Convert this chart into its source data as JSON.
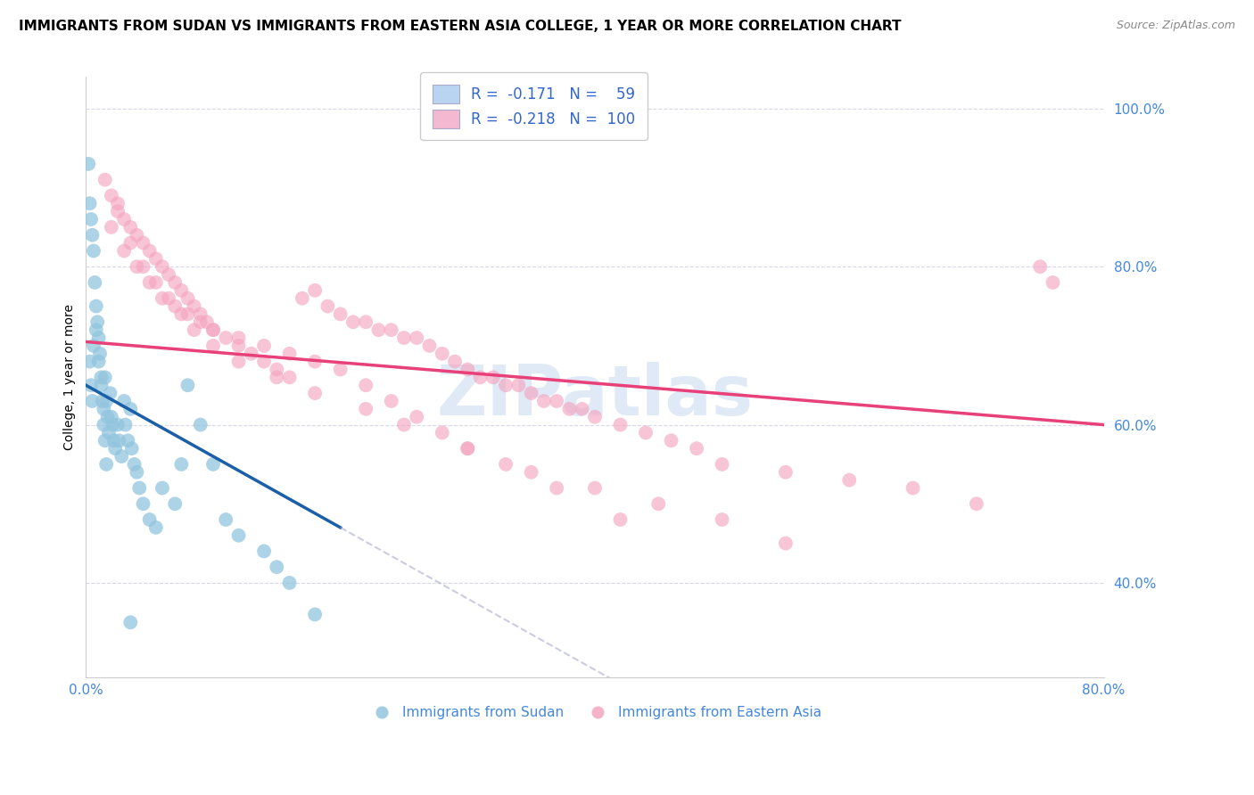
{
  "title": "IMMIGRANTS FROM SUDAN VS IMMIGRANTS FROM EASTERN ASIA COLLEGE, 1 YEAR OR MORE CORRELATION CHART",
  "source": "Source: ZipAtlas.com",
  "ylabel": "College, 1 year or more",
  "sudan_color": "#92c5de",
  "eastern_color": "#f4a6c0",
  "sudan_line_color": "#1a5fa8",
  "eastern_line_color": "#e8417a",
  "sudan_R": -0.171,
  "sudan_N": 59,
  "eastern_R": -0.218,
  "eastern_N": 100,
  "xlim": [
    0,
    80
  ],
  "ylim": [
    28,
    104
  ],
  "yticks": [
    40,
    60,
    80,
    100
  ],
  "ytick_labels": [
    "40.0%",
    "60.0%",
    "80.0%",
    "100.0%"
  ],
  "xtick_labels_left": "0.0%",
  "xtick_labels_right": "80.0%",
  "watermark": "ZIPatlas",
  "background_color": "#ffffff",
  "grid_color": "#d8d8e8",
  "title_fontsize": 11,
  "axis_label_fontsize": 10,
  "tick_fontsize": 11,
  "legend_fontsize": 12,
  "sudan_scatter_x": [
    0.3,
    0.4,
    0.5,
    0.6,
    0.8,
    1.0,
    1.2,
    1.4,
    1.5,
    1.6,
    1.7,
    1.8,
    1.9,
    2.0,
    2.1,
    2.2,
    2.3,
    2.5,
    2.6,
    2.8,
    3.0,
    3.1,
    3.3,
    3.5,
    3.6,
    3.8,
    4.0,
    4.2,
    4.5,
    5.0,
    5.5,
    6.0,
    7.0,
    7.5,
    8.0,
    9.0,
    10.0,
    11.0,
    12.0,
    14.0,
    15.0,
    16.0,
    18.0,
    0.2,
    0.3,
    0.4,
    0.5,
    0.6,
    0.7,
    0.8,
    0.9,
    1.0,
    1.1,
    1.2,
    1.3,
    1.4,
    1.5,
    1.6,
    3.5
  ],
  "sudan_scatter_y": [
    68,
    65,
    63,
    70,
    72,
    68,
    65,
    62,
    66,
    63,
    61,
    59,
    64,
    61,
    60,
    58,
    57,
    60,
    58,
    56,
    63,
    60,
    58,
    62,
    57,
    55,
    54,
    52,
    50,
    48,
    47,
    52,
    50,
    55,
    65,
    60,
    55,
    48,
    46,
    44,
    42,
    40,
    36,
    93,
    88,
    86,
    84,
    82,
    78,
    75,
    73,
    71,
    69,
    66,
    63,
    60,
    58,
    55,
    35
  ],
  "eastern_scatter_x": [
    1.5,
    2.0,
    2.5,
    3.0,
    3.5,
    4.0,
    4.5,
    5.0,
    5.5,
    6.0,
    6.5,
    7.0,
    7.5,
    8.0,
    8.5,
    9.0,
    9.5,
    10.0,
    11.0,
    12.0,
    13.0,
    14.0,
    15.0,
    16.0,
    17.0,
    18.0,
    19.0,
    20.0,
    21.0,
    22.0,
    23.0,
    24.0,
    25.0,
    26.0,
    27.0,
    28.0,
    29.0,
    30.0,
    31.0,
    32.0,
    33.0,
    34.0,
    35.0,
    36.0,
    37.0,
    38.0,
    39.0,
    40.0,
    42.0,
    44.0,
    46.0,
    48.0,
    50.0,
    55.0,
    60.0,
    65.0,
    70.0,
    75.0,
    76.0,
    2.0,
    3.0,
    4.0,
    5.0,
    6.0,
    7.0,
    8.0,
    9.0,
    10.0,
    12.0,
    14.0,
    16.0,
    18.0,
    20.0,
    22.0,
    24.0,
    26.0,
    28.0,
    30.0,
    2.5,
    3.5,
    4.5,
    5.5,
    6.5,
    7.5,
    8.5,
    10.0,
    12.0,
    15.0,
    18.0,
    22.0,
    25.0,
    30.0,
    35.0,
    40.0,
    45.0,
    50.0,
    55.0,
    33.0,
    37.0,
    42.0
  ],
  "eastern_scatter_y": [
    91,
    89,
    88,
    86,
    85,
    84,
    83,
    82,
    81,
    80,
    79,
    78,
    77,
    76,
    75,
    74,
    73,
    72,
    71,
    70,
    69,
    68,
    67,
    66,
    76,
    77,
    75,
    74,
    73,
    73,
    72,
    72,
    71,
    71,
    70,
    69,
    68,
    67,
    66,
    66,
    65,
    65,
    64,
    63,
    63,
    62,
    62,
    61,
    60,
    59,
    58,
    57,
    55,
    54,
    53,
    52,
    50,
    80,
    78,
    85,
    82,
    80,
    78,
    76,
    75,
    74,
    73,
    72,
    71,
    70,
    69,
    68,
    67,
    65,
    63,
    61,
    59,
    57,
    87,
    83,
    80,
    78,
    76,
    74,
    72,
    70,
    68,
    66,
    64,
    62,
    60,
    57,
    54,
    52,
    50,
    48,
    45,
    55,
    52,
    48
  ]
}
